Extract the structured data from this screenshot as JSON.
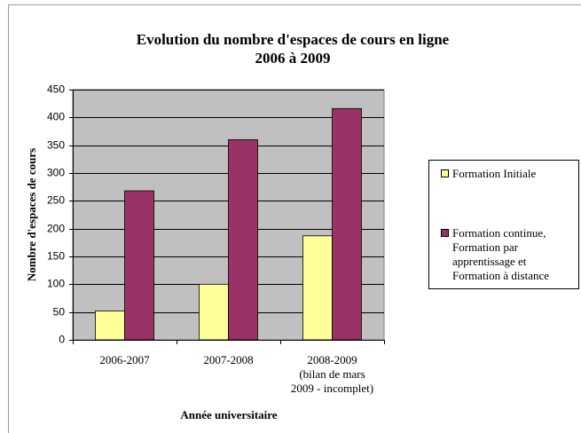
{
  "chart_data": {
    "type": "bar",
    "title": "Evolution du nombre d'espaces de cours en ligne\n2006 à 2009",
    "x_label": "Année universitaire",
    "y_label": "Nombre d'espaces de cours",
    "categories": [
      "2006-2007",
      "2007-2008",
      "2008-2009\n(bilan de mars\n2009 - incomplet)"
    ],
    "series": [
      {
        "name": "Formation Initiale",
        "color": "#ffff99",
        "values": [
          52,
          100,
          187
        ]
      },
      {
        "name": "Formation continue,\nFormation par\napprentissage et\nFormation à distance",
        "color": "#993366",
        "values": [
          268,
          360,
          416
        ]
      }
    ],
    "ylim": [
      0,
      450
    ],
    "yticks": [
      0,
      50,
      100,
      150,
      200,
      250,
      300,
      350,
      400,
      450
    ],
    "grid": true,
    "legend": "right",
    "plot_background": "#c0c0c0"
  }
}
